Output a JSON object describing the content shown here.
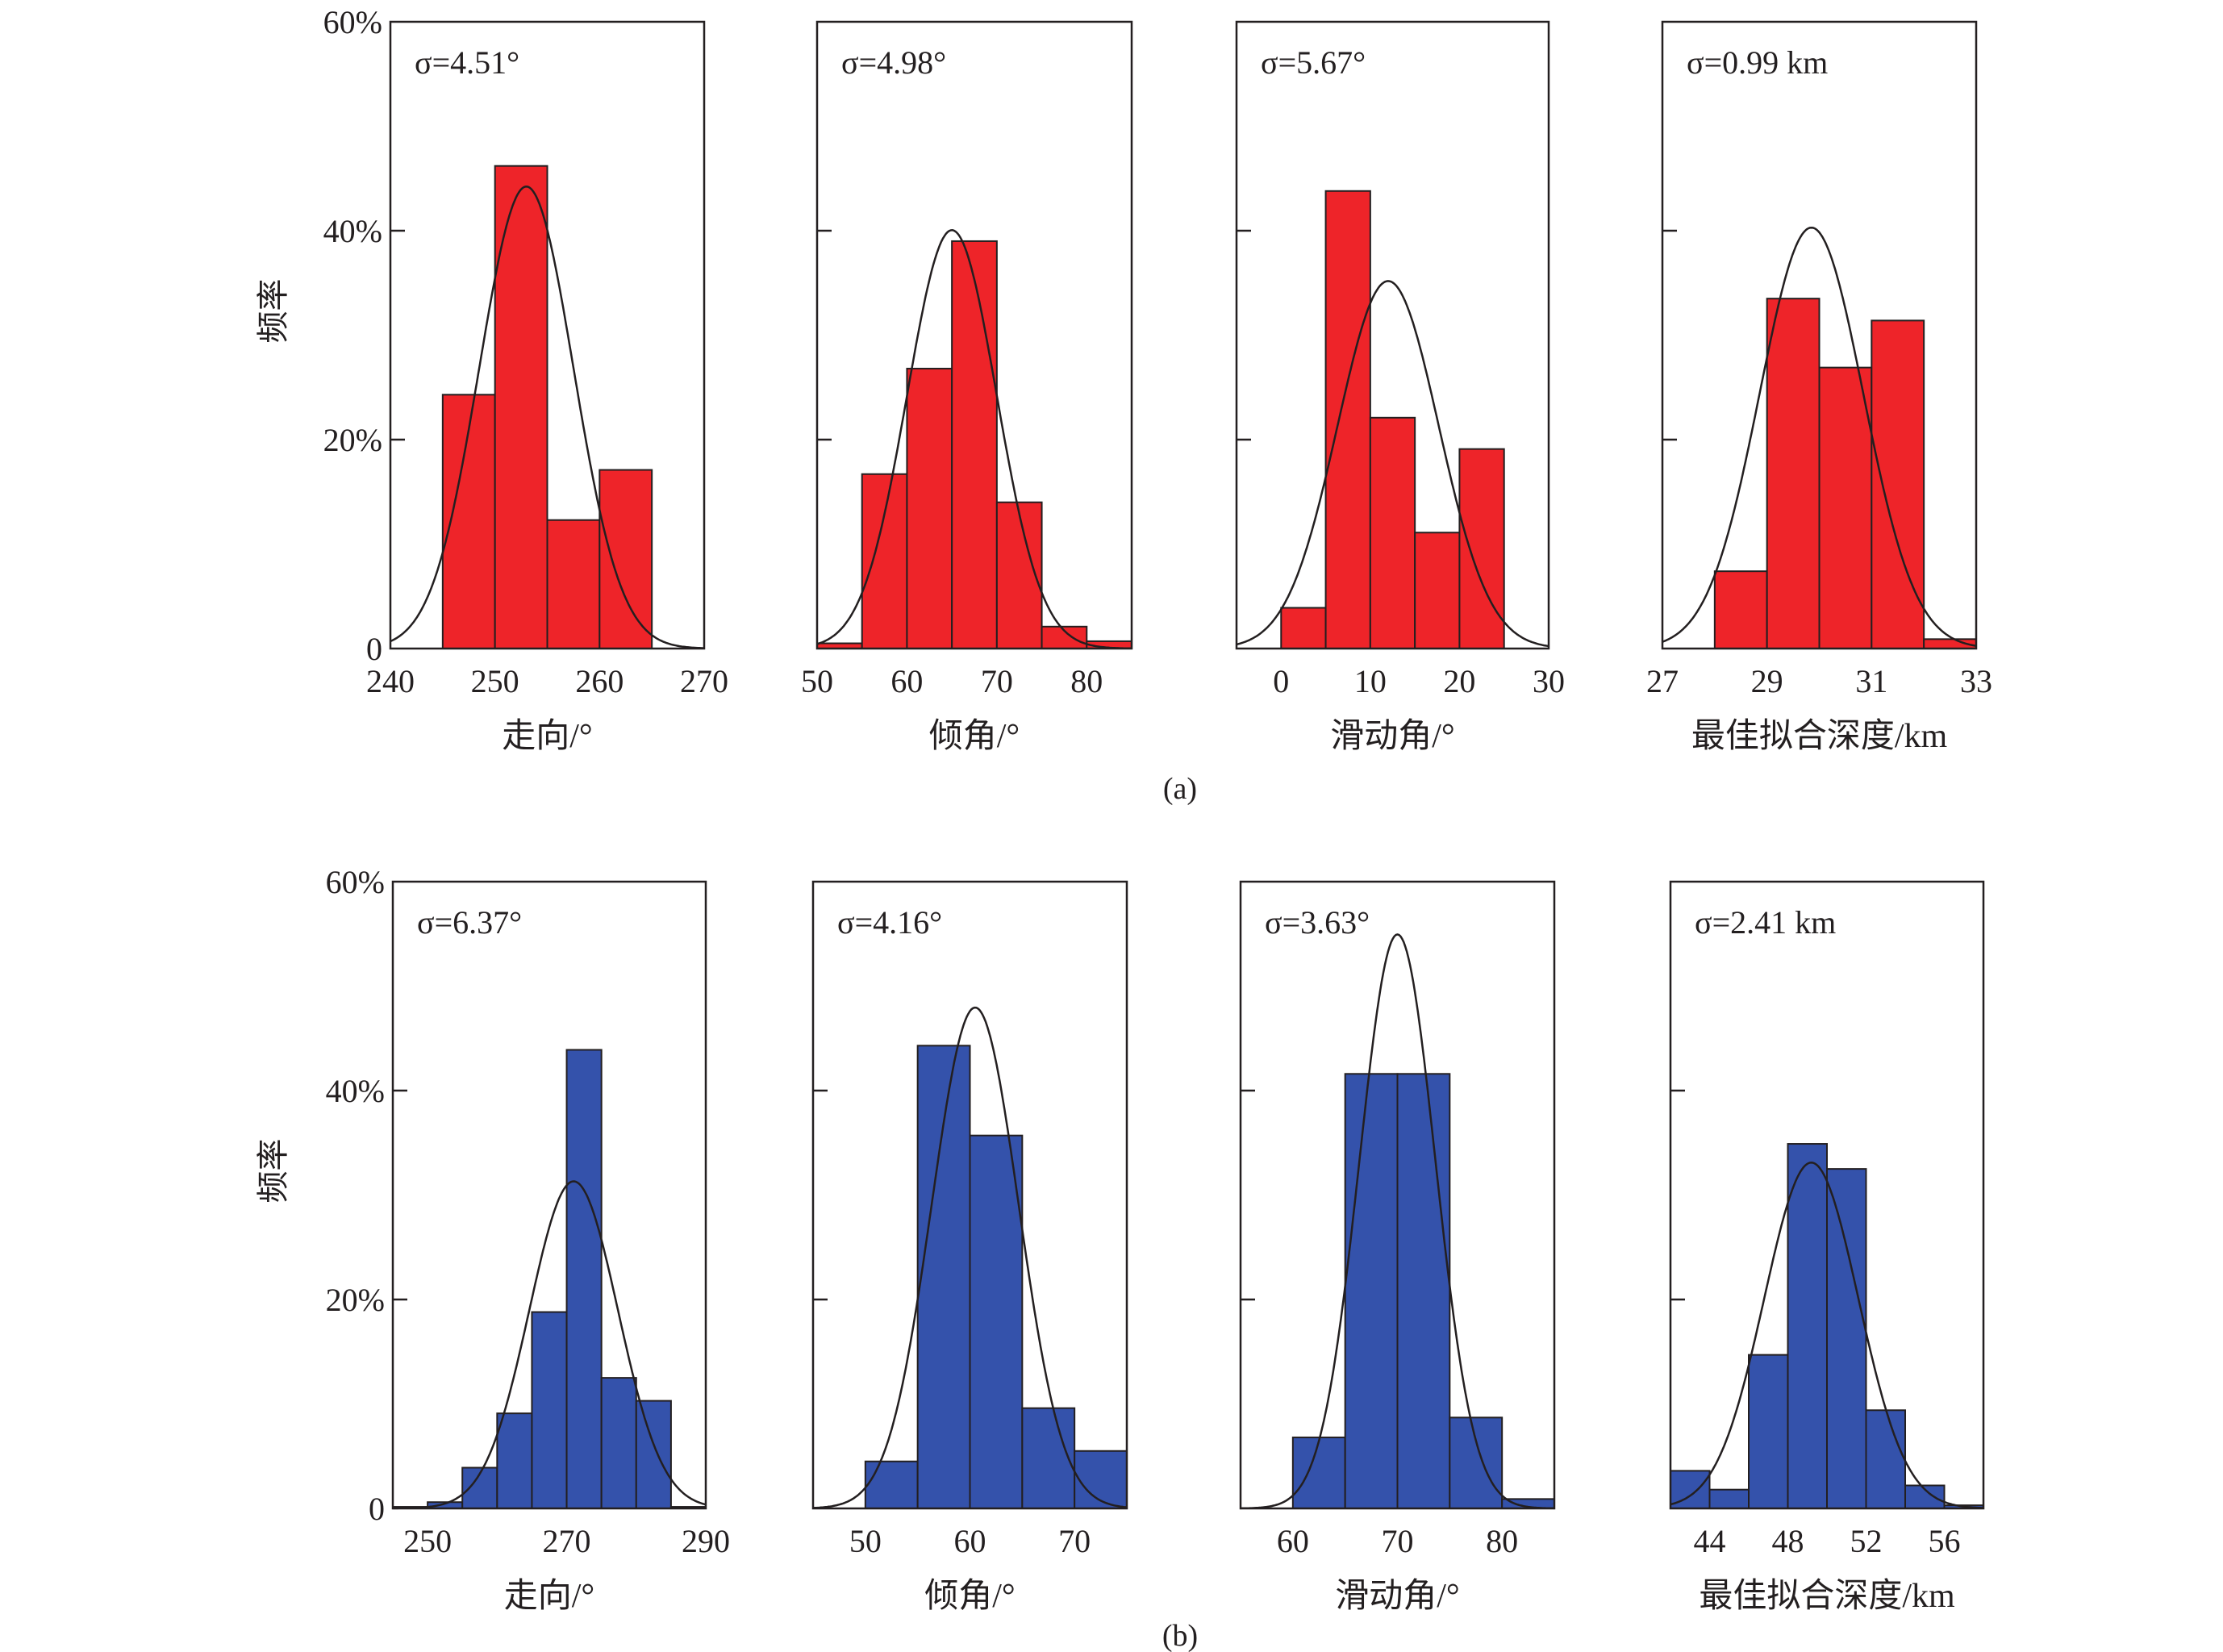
{
  "colors": {
    "row_a": "#ee2429",
    "row_b": "#3452ab",
    "curve": "#231f20",
    "axis": "#231f20"
  },
  "captions": [
    "(a)",
    "(b)"
  ],
  "chart_data": [
    {
      "type": "bar",
      "row": "a",
      "sigma_label": "σ=4.51°",
      "sigma": 4.51,
      "mean": 253,
      "bin_width": 5,
      "bin_edges": [
        245,
        250,
        255,
        260,
        265
      ],
      "values": [
        24.3,
        46.2,
        12.3,
        17.1
      ],
      "xlim": [
        240,
        270
      ],
      "xticks": [
        240,
        250,
        260,
        270
      ],
      "xlabel": "走向/°",
      "ylim": [
        0,
        60
      ],
      "yticks": [
        0,
        20,
        40,
        60
      ],
      "ytick_labels": [
        "0",
        "20%",
        "40%",
        "60%"
      ],
      "ylabel": "频率"
    },
    {
      "type": "bar",
      "row": "a",
      "sigma_label": "σ=4.98°",
      "sigma": 4.98,
      "mean": 65,
      "bin_width": 5,
      "bin_edges": [
        50,
        55,
        60,
        65,
        70,
        75,
        80,
        85
      ],
      "values": [
        0.5,
        16.7,
        26.8,
        39.0,
        14.0,
        2.1,
        0.7
      ],
      "xlim": [
        50,
        85
      ],
      "xticks": [
        50,
        60,
        70,
        80
      ],
      "xlabel": "倾角/°",
      "ylim": [
        0,
        60
      ],
      "yticks": [
        0,
        20,
        40,
        60
      ]
    },
    {
      "type": "bar",
      "row": "a",
      "sigma_label": "σ=5.67°",
      "sigma": 5.67,
      "mean": 12,
      "bin_width": 5,
      "bin_edges": [
        0,
        5,
        10,
        15,
        20,
        25
      ],
      "values": [
        3.9,
        43.8,
        22.1,
        11.1,
        19.1
      ],
      "xlim": [
        -5,
        30
      ],
      "xticks": [
        0,
        10,
        20,
        30
      ],
      "xlabel": "滑动角/°",
      "ylim": [
        0,
        60
      ],
      "yticks": [
        0,
        20,
        40,
        60
      ]
    },
    {
      "type": "bar",
      "row": "a",
      "sigma_label": "σ=0.99 km",
      "sigma": 0.99,
      "mean": 29.85,
      "bin_width": 1,
      "bin_edges": [
        28,
        29,
        30,
        31,
        32,
        33
      ],
      "values": [
        7.4,
        33.5,
        26.9,
        31.4,
        0.9
      ],
      "xlim": [
        27,
        33
      ],
      "xticks": [
        27,
        29,
        31,
        33
      ],
      "xlabel": "最佳拟合深度/km",
      "ylim": [
        0,
        60
      ],
      "yticks": [
        0,
        20,
        40,
        60
      ]
    },
    {
      "type": "bar",
      "row": "b",
      "sigma_label": "σ=6.37°",
      "sigma": 6.37,
      "mean": 271,
      "bin_width": 5,
      "bin_edges": [
        245,
        250,
        255,
        260,
        265,
        270,
        275,
        280,
        285,
        290
      ],
      "values": [
        0.15,
        0.6,
        3.9,
        9.1,
        18.8,
        43.9,
        12.5,
        10.3,
        0.15
      ],
      "xlim": [
        245,
        290
      ],
      "xticks": [
        250,
        270,
        290
      ],
      "xlabel": "走向/°",
      "ylim": [
        0,
        60
      ],
      "yticks": [
        0,
        20,
        40,
        60
      ],
      "ytick_labels": [
        "0",
        "20%",
        "40%",
        "60%"
      ],
      "ylabel": "频率"
    },
    {
      "type": "bar",
      "row": "b",
      "sigma_label": "σ=4.16°",
      "sigma": 4.16,
      "mean": 60.5,
      "bin_width": 5,
      "bin_edges": [
        50,
        55,
        60,
        65,
        70,
        75
      ],
      "values": [
        4.5,
        44.3,
        35.7,
        9.6,
        5.5
      ],
      "xlim": [
        45,
        75
      ],
      "xticks": [
        50,
        60,
        70
      ],
      "xlabel": "倾角/°",
      "ylim": [
        0,
        60
      ],
      "yticks": [
        0,
        20,
        40,
        60
      ]
    },
    {
      "type": "bar",
      "row": "b",
      "sigma_label": "σ=3.63°",
      "sigma": 3.63,
      "mean": 70,
      "bin_width": 5,
      "bin_edges": [
        60,
        65,
        70,
        75,
        80,
        85
      ],
      "values": [
        6.8,
        41.6,
        41.6,
        8.7,
        0.9
      ],
      "xlim": [
        55,
        85
      ],
      "xticks": [
        60,
        70,
        80
      ],
      "xlabel": "滑动角/°",
      "ylim": [
        0,
        60
      ],
      "yticks": [
        0,
        20,
        40,
        60
      ]
    },
    {
      "type": "bar",
      "row": "b",
      "sigma_label": "σ=2.41 km",
      "sigma": 2.41,
      "mean": 49.2,
      "bin_width": 2,
      "bin_edges": [
        42,
        44,
        46,
        48,
        50,
        52,
        54,
        56,
        58
      ],
      "values": [
        3.6,
        1.8,
        14.7,
        34.9,
        32.5,
        9.4,
        2.2,
        0.3
      ],
      "xlim": [
        42,
        58
      ],
      "xticks": [
        44,
        48,
        52,
        56
      ],
      "xlabel": "最佳拟合深度/km",
      "ylim": [
        0,
        60
      ],
      "yticks": [
        0,
        20,
        40,
        60
      ]
    }
  ]
}
